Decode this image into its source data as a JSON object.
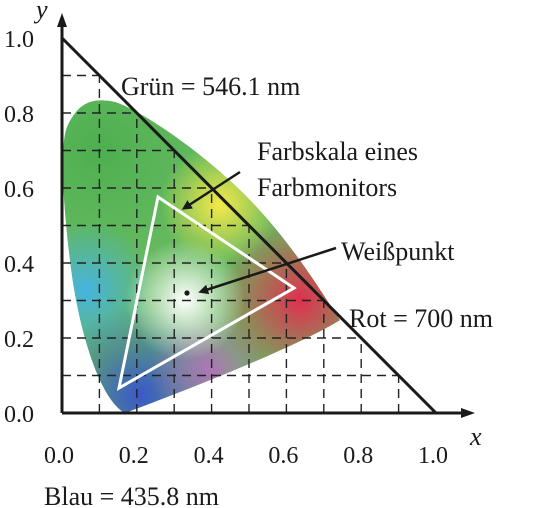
{
  "axes": {
    "x_label": "x",
    "y_label": "y",
    "x_ticks": [
      "0.0",
      "0.2",
      "0.4",
      "0.6",
      "0.8",
      "1.0"
    ],
    "y_ticks": [
      "0.0",
      "0.2",
      "0.4",
      "0.6",
      "0.8",
      "1.0"
    ],
    "range": [
      0,
      1
    ],
    "grid": "dashed every 0.1, inside the spectral locus"
  },
  "annotations": {
    "green": "Grün = 546.1 nm",
    "red": "Rot = 700 nm",
    "blue": "Blau = 435.8 nm",
    "gamut_line1": "Farbskala eines",
    "gamut_line2": "Farbmonitors",
    "whitepoint": "Weißpunkt"
  },
  "colors": {
    "axis": "#1a1a1a",
    "grid": "#222222",
    "gamut_outline": "#ffffff",
    "green_region": "#4caf50",
    "yellow_region": "#f5e94a",
    "red_region": "#e0304f",
    "blue_region": "#3b6fd8",
    "cyan_region": "#46b4e0",
    "white_point": "#ffffff"
  }
}
